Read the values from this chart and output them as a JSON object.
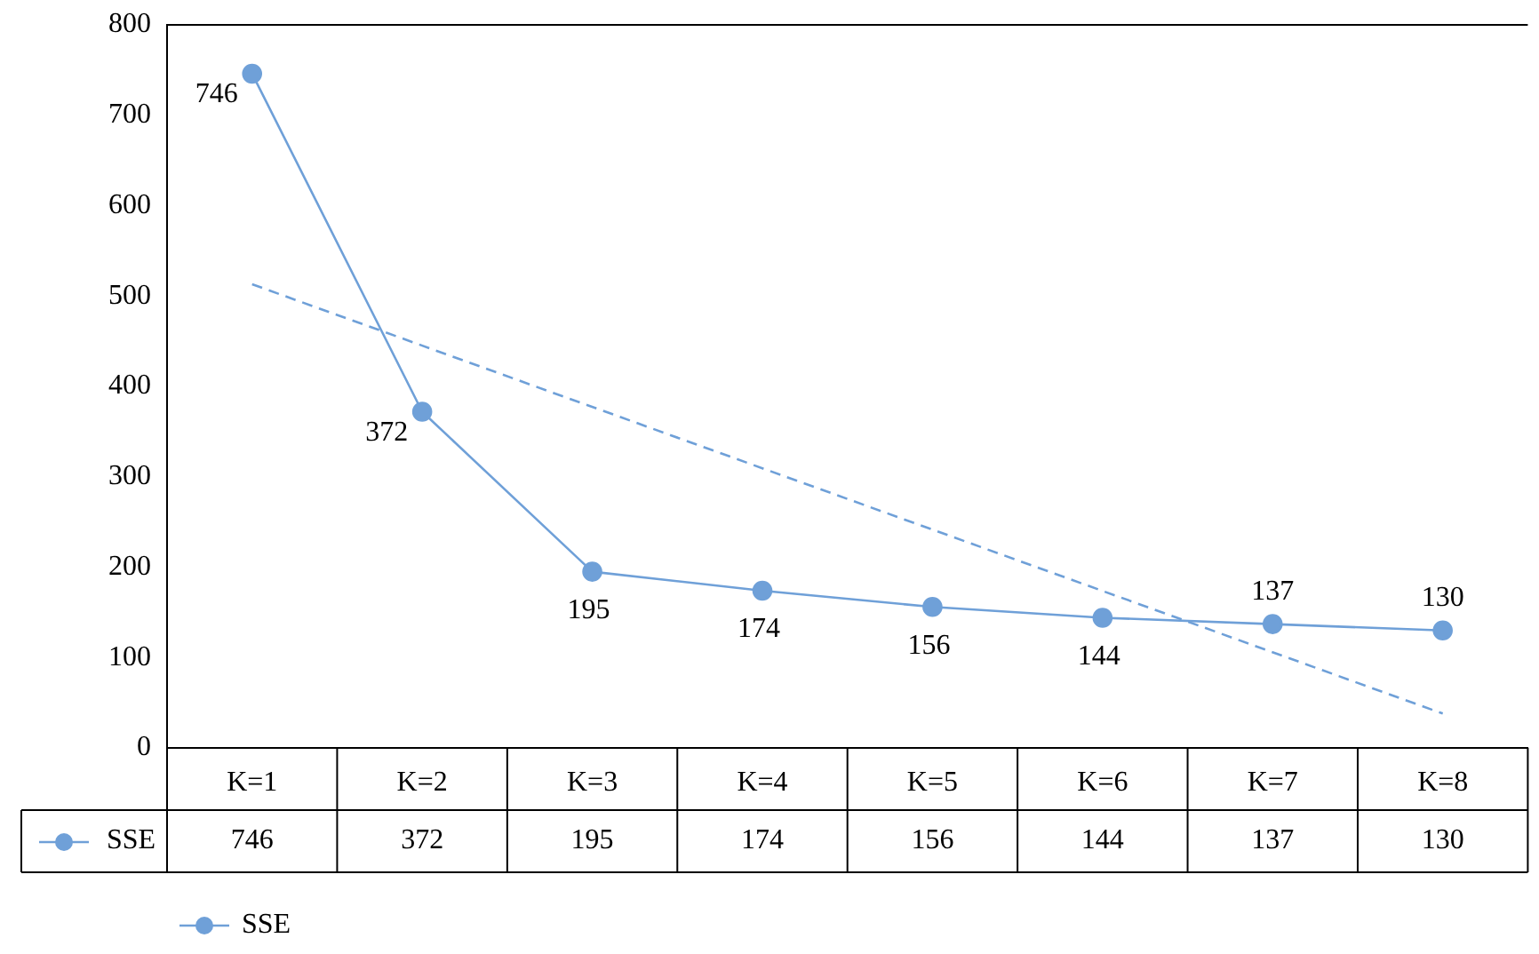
{
  "chart_data": {
    "type": "line",
    "categories": [
      "K=1",
      "K=2",
      "K=3",
      "K=4",
      "K=5",
      "K=6",
      "K=7",
      "K=8"
    ],
    "series": [
      {
        "name": "SSE",
        "color": "#6fa0d8",
        "values": [
          746,
          372,
          195,
          174,
          156,
          144,
          137,
          130
        ],
        "value_labels": [
          "746",
          "372",
          "195",
          "174",
          "156",
          "144",
          "137",
          "130"
        ],
        "marker": "circle",
        "line_style": "solid"
      },
      {
        "type": "line",
        "x": [
          "K=1",
          "K=8"
        ],
        "color": "#6fa0d8",
        "values": [
          513,
          38
        ],
        "marker": "none",
        "line_style": "dashed"
      }
    ],
    "ylim": [
      0,
      800
    ],
    "yticks": [
      0,
      100,
      200,
      300,
      400,
      500,
      600,
      700,
      800
    ],
    "grid": false,
    "legend": "bottom"
  }
}
